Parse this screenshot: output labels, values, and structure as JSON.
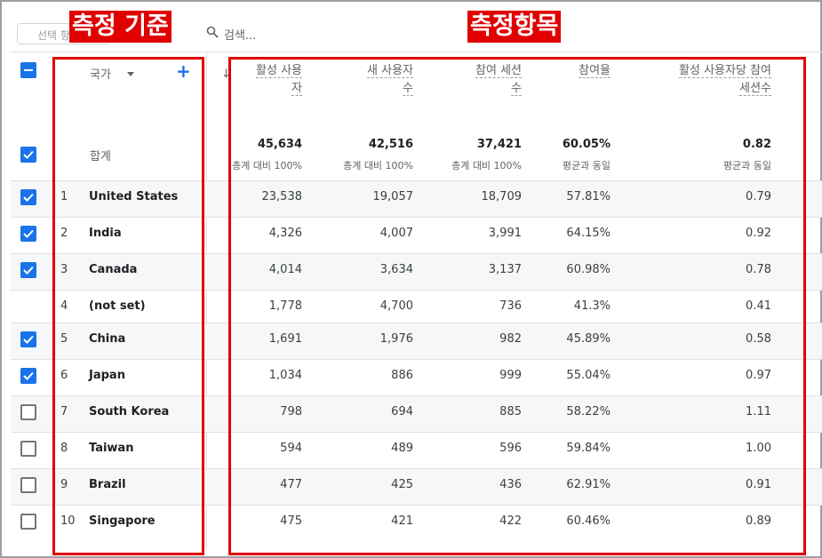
{
  "search": {
    "selector_placeholder": "선택 항",
    "search_label": "검색..."
  },
  "annotations": {
    "dimension_label": "측정 기준",
    "metrics_label": "측정항목"
  },
  "dimension_header": "국가",
  "columns": [
    {
      "line1": "활성 사용",
      "line2": "자"
    },
    {
      "line1": "새 사용자",
      "line2": "수"
    },
    {
      "line1": "참여 세션",
      "line2": "수"
    },
    {
      "line1": "참여율",
      "line2": ""
    },
    {
      "line1": "활성 사용자당 참여",
      "line2": "세션수"
    }
  ],
  "totals": {
    "label": "합계",
    "values": [
      "45,634",
      "42,516",
      "37,421",
      "60.05%",
      "0.82"
    ],
    "subs": [
      "총계 대비 100%",
      "총계 대비 100%",
      "총계 대비 100%",
      "평균과 동일",
      "평균과 동일"
    ]
  },
  "rows": [
    {
      "num": "1",
      "country": "United States",
      "checked": true,
      "values": [
        "23,538",
        "19,057",
        "18,709",
        "57.81%",
        "0.79"
      ]
    },
    {
      "num": "2",
      "country": "India",
      "checked": true,
      "values": [
        "4,326",
        "4,007",
        "3,991",
        "64.15%",
        "0.92"
      ]
    },
    {
      "num": "3",
      "country": "Canada",
      "checked": true,
      "values": [
        "4,014",
        "3,634",
        "3,137",
        "60.98%",
        "0.78"
      ]
    },
    {
      "num": "4",
      "country": "(not set)",
      "checked": null,
      "values": [
        "1,778",
        "4,700",
        "736",
        "41.3%",
        "0.41"
      ]
    },
    {
      "num": "5",
      "country": "China",
      "checked": true,
      "values": [
        "1,691",
        "1,976",
        "982",
        "45.89%",
        "0.58"
      ]
    },
    {
      "num": "6",
      "country": "Japan",
      "checked": true,
      "values": [
        "1,034",
        "886",
        "999",
        "55.04%",
        "0.97"
      ]
    },
    {
      "num": "7",
      "country": "South Korea",
      "checked": false,
      "values": [
        "798",
        "694",
        "885",
        "58.22%",
        "1.11"
      ]
    },
    {
      "num": "8",
      "country": "Taiwan",
      "checked": false,
      "values": [
        "594",
        "489",
        "596",
        "59.84%",
        "1.00"
      ]
    },
    {
      "num": "9",
      "country": "Brazil",
      "checked": false,
      "values": [
        "477",
        "425",
        "436",
        "62.91%",
        "0.91"
      ]
    },
    {
      "num": "10",
      "country": "Singapore",
      "checked": false,
      "values": [
        "475",
        "421",
        "422",
        "60.46%",
        "0.89"
      ]
    }
  ],
  "colors": {
    "accent": "#1a73e8",
    "annotation": "#e00000"
  }
}
